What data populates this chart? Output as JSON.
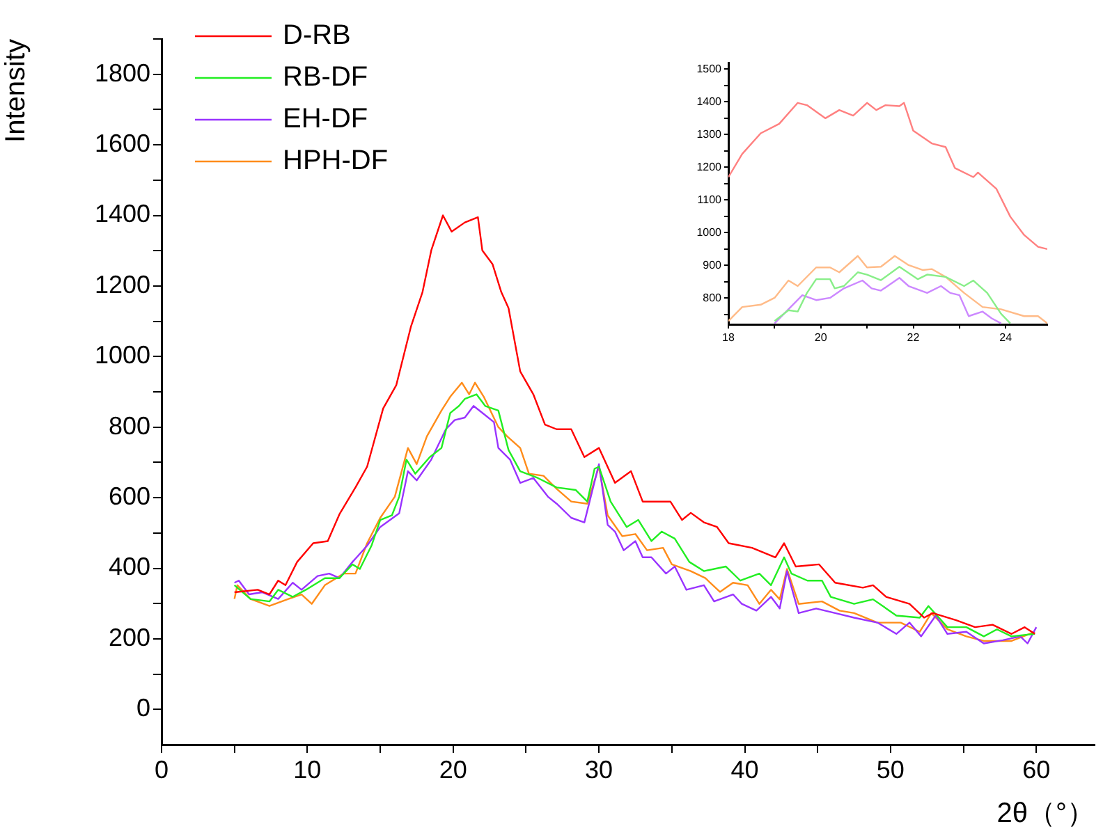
{
  "chart_data": [
    {
      "type": "line",
      "xlabel": "2θ（°）",
      "ylabel": "Intensity",
      "xlim": [
        0,
        64
      ],
      "ylim": [
        -100,
        1900
      ],
      "xticks": [
        0,
        {
          "value": 5,
          "label": null
        },
        10,
        {
          "value": 15,
          "label": null
        },
        20,
        {
          "value": 25,
          "label": null
        },
        30,
        {
          "value": 35,
          "label": null
        },
        40,
        {
          "value": 45,
          "label": null
        },
        50,
        {
          "value": 55,
          "label": null
        },
        60
      ],
      "yticks": [
        0,
        {
          "value": 100,
          "label": null
        },
        200,
        {
          "value": 300,
          "label": null
        },
        400,
        {
          "value": 500,
          "label": null
        },
        600,
        {
          "value": 700,
          "label": null
        },
        800,
        {
          "value": 900,
          "label": null
        },
        1000,
        {
          "value": 1100,
          "label": null
        },
        1200,
        {
          "value": 1300,
          "label": null
        },
        1400,
        {
          "value": 1500,
          "label": null
        },
        1600,
        {
          "value": 1700,
          "label": null
        },
        1800,
        {
          "value": 1900,
          "label": null
        }
      ],
      "grid": false,
      "legend": "top left",
      "marker": "none",
      "line_style": "solid",
      "series": [
        {
          "name": "D-RB",
          "color": "#ff0000",
          "x": [
            5,
            6.6,
            7.4,
            8.0,
            8.5,
            9.3,
            10.4,
            11.4,
            12.2,
            13.3,
            14.1,
            15.2,
            16.1,
            17.1,
            17.9,
            18.5,
            19.3,
            19.9,
            20.8,
            21.7,
            22.0,
            22.7,
            23.3,
            23.8,
            24.6,
            25.5,
            26.3,
            27.1,
            28.1,
            29.0,
            30.0,
            31.1,
            32.2,
            33.0,
            34.9,
            35.7,
            36.3,
            37.2,
            38.1,
            38.9,
            40.5,
            42.1,
            42.7,
            43.5,
            45.1,
            46.2,
            48.1,
            48.8,
            49.7,
            51.3,
            52.3,
            52.9,
            54.5,
            55.8,
            57.0,
            58.3,
            59.2,
            59.9
          ],
          "values": [
            332,
            339,
            326,
            365,
            352,
            418,
            471,
            477,
            553,
            629,
            688,
            853,
            919,
            1084,
            1183,
            1301,
            1400,
            1354,
            1380,
            1395,
            1301,
            1262,
            1183,
            1137,
            958,
            893,
            807,
            794,
            794,
            715,
            741,
            642,
            675,
            589,
            589,
            537,
            557,
            530,
            517,
            471,
            458,
            431,
            471,
            405,
            411,
            359,
            345,
            352,
            319,
            299,
            260,
            273,
            253,
            233,
            240,
            214,
            233,
            214
          ]
        },
        {
          "name": "RB-DF",
          "color": "#22ee22",
          "x": [
            5.0,
            6.1,
            7.4,
            8.0,
            9.0,
            9.9,
            11.2,
            12.2,
            13.1,
            13.6,
            14.4,
            15.0,
            15.8,
            16.3,
            16.8,
            17.4,
            18.4,
            19.2,
            19.8,
            20.4,
            20.8,
            21.6,
            22.2,
            23.1,
            23.8,
            24.6,
            25.8,
            27.1,
            28.4,
            29.2,
            29.7,
            30.0,
            30.8,
            31.9,
            32.7,
            33.6,
            34.3,
            35.2,
            36.2,
            37.2,
            38.7,
            39.7,
            41.0,
            41.8,
            42.7,
            43.2,
            44.3,
            45.3,
            45.9,
            47.5,
            48.8,
            50.4,
            52.0,
            52.6,
            53.9,
            55.2,
            56.4,
            57.3,
            58.3,
            59.9
          ],
          "values": [
            352,
            313,
            306,
            339,
            319,
            339,
            372,
            372,
            411,
            398,
            464,
            537,
            550,
            603,
            708,
            668,
            715,
            741,
            840,
            860,
            880,
            893,
            860,
            847,
            735,
            675,
            656,
            629,
            622,
            589,
            682,
            688,
            589,
            517,
            537,
            477,
            504,
            484,
            418,
            392,
            405,
            365,
            385,
            352,
            431,
            385,
            365,
            365,
            319,
            299,
            312,
            266,
            260,
            293,
            233,
            233,
            207,
            227,
            207,
            214
          ]
        },
        {
          "name": "EH-DF",
          "color": "#9933ff",
          "x": [
            5.0,
            5.3,
            6.0,
            6.9,
            8.0,
            9.0,
            9.6,
            10.7,
            11.5,
            12.2,
            13.1,
            14.1,
            15.0,
            16.3,
            16.9,
            17.5,
            18.5,
            19.5,
            20.1,
            20.8,
            21.4,
            22.2,
            22.8,
            23.1,
            23.9,
            24.6,
            25.5,
            26.5,
            27.1,
            28.1,
            29.0,
            30.0,
            30.6,
            31.1,
            31.7,
            32.5,
            33.0,
            33.6,
            34.6,
            35.2,
            36.0,
            37.2,
            37.9,
            39.2,
            39.8,
            40.8,
            41.8,
            42.4,
            42.9,
            43.7,
            44.9,
            46.2,
            47.5,
            49.1,
            50.4,
            51.3,
            52.1,
            53.1,
            53.9,
            55.2,
            56.4,
            57.7,
            58.9,
            59.4,
            60.0
          ],
          "values": [
            359,
            365,
            326,
            332,
            313,
            359,
            339,
            378,
            385,
            372,
            418,
            464,
            517,
            556,
            675,
            649,
            708,
            794,
            820,
            827,
            860,
            834,
            814,
            741,
            708,
            642,
            656,
            603,
            583,
            543,
            530,
            695,
            523,
            504,
            451,
            477,
            431,
            431,
            385,
            405,
            339,
            352,
            306,
            326,
            299,
            280,
            319,
            286,
            392,
            273,
            286,
            273,
            260,
            246,
            214,
            246,
            207,
            266,
            214,
            220,
            187,
            196,
            207,
            187,
            233
          ]
        },
        {
          "name": "HPH-DF",
          "color": "#ff8c1a",
          "x": [
            5.0,
            5.2,
            6.1,
            7.4,
            8.7,
            9.6,
            10.3,
            11.2,
            12.5,
            13.3,
            14.1,
            15.0,
            16.0,
            16.9,
            17.5,
            18.2,
            19.2,
            19.8,
            20.6,
            21.1,
            21.5,
            22.1,
            23.1,
            23.7,
            24.6,
            25.2,
            26.2,
            27.1,
            28.1,
            29.2,
            30.0,
            30.6,
            31.6,
            32.5,
            33.3,
            34.4,
            35.0,
            36.3,
            37.3,
            38.3,
            39.2,
            40.2,
            41.0,
            41.8,
            42.4,
            42.9,
            43.7,
            45.3,
            46.5,
            47.5,
            49.1,
            50.7,
            52.0,
            52.8,
            53.9,
            55.2,
            56.4,
            58.3,
            59.9
          ],
          "values": [
            313,
            352,
            313,
            293,
            313,
            326,
            299,
            352,
            385,
            385,
            471,
            543,
            603,
            741,
            695,
            774,
            847,
            886,
            926,
            893,
            926,
            886,
            800,
            774,
            741,
            668,
            662,
            625,
            589,
            583,
            688,
            550,
            491,
            497,
            451,
            458,
            411,
            392,
            372,
            333,
            359,
            352,
            299,
            339,
            312,
            398,
            299,
            306,
            280,
            273,
            246,
            246,
            220,
            273,
            227,
            207,
            194,
            194,
            220
          ]
        }
      ]
    },
    {
      "type": "line",
      "xlim": [
        18,
        24.9
      ],
      "ylim": [
        720,
        1520
      ],
      "xticks": [
        18,
        {
          "value": 19,
          "label": null
        },
        20,
        {
          "value": 21,
          "label": null
        },
        22,
        {
          "value": 23,
          "label": null
        },
        24
      ],
      "yticks": [
        {
          "value": 750,
          "label": null
        },
        800,
        {
          "value": 850,
          "label": null
        },
        900,
        {
          "value": 950,
          "label": null
        },
        1000,
        {
          "value": 1050,
          "label": null
        },
        1100,
        {
          "value": 1150,
          "label": null
        },
        1200,
        {
          "value": 1250,
          "label": null
        },
        1300,
        {
          "value": 1350,
          "label": null
        },
        1400,
        {
          "value": 1450,
          "label": null
        },
        1500
      ],
      "grid": false,
      "marker": "none",
      "line_style": "solid",
      "series": [
        {
          "color": "#ff8080",
          "x": [
            18,
            18.3,
            18.7,
            19.1,
            19.5,
            19.7,
            20.1,
            20.4,
            20.7,
            21.0,
            21.2,
            21.4,
            21.7,
            21.8,
            22.0,
            22.4,
            22.7,
            22.9,
            23.3,
            23.4,
            23.8,
            24.1,
            24.4,
            24.7,
            24.9
          ],
          "values": [
            1170,
            1241,
            1304,
            1333,
            1397,
            1390,
            1350,
            1375,
            1358,
            1397,
            1375,
            1390,
            1387,
            1397,
            1312,
            1273,
            1262,
            1198,
            1170,
            1184,
            1134,
            1049,
            993,
            957,
            950
          ]
        },
        {
          "color": "#88ee88",
          "x": [
            19.0,
            19.3,
            19.5,
            19.7,
            19.9,
            20.2,
            20.3,
            20.5,
            20.8,
            21.0,
            21.3,
            21.7,
            22.1,
            22.3,
            22.7,
            23.1,
            23.3,
            23.6,
            23.9,
            24.1
          ],
          "values": [
            730,
            763,
            759,
            816,
            858,
            858,
            830,
            837,
            879,
            872,
            855,
            896,
            858,
            872,
            865,
            837,
            854,
            816,
            752,
            723
          ]
        },
        {
          "color": "#cc88ff",
          "x": [
            19.0,
            19.3,
            19.6,
            19.9,
            20.2,
            20.5,
            20.9,
            21.1,
            21.3,
            21.7,
            21.9,
            22.3,
            22.6,
            22.8,
            23.0,
            23.2,
            23.5,
            23.7,
            23.9
          ],
          "values": [
            723,
            766,
            809,
            794,
            801,
            830,
            854,
            830,
            823,
            862,
            837,
            816,
            837,
            816,
            809,
            745,
            759,
            738,
            723
          ]
        },
        {
          "color": "#ffbb88",
          "x": [
            18.0,
            18.3,
            18.7,
            19.0,
            19.3,
            19.5,
            19.9,
            20.2,
            20.4,
            20.8,
            21.0,
            21.3,
            21.6,
            21.9,
            22.2,
            22.4,
            22.7,
            23.1,
            23.5,
            23.9,
            24.4,
            24.7,
            24.9
          ],
          "values": [
            730,
            773,
            780,
            801,
            854,
            837,
            894,
            894,
            879,
            929,
            894,
            896,
            929,
            901,
            886,
            889,
            865,
            816,
            773,
            766,
            745,
            745,
            723
          ]
        }
      ]
    }
  ]
}
